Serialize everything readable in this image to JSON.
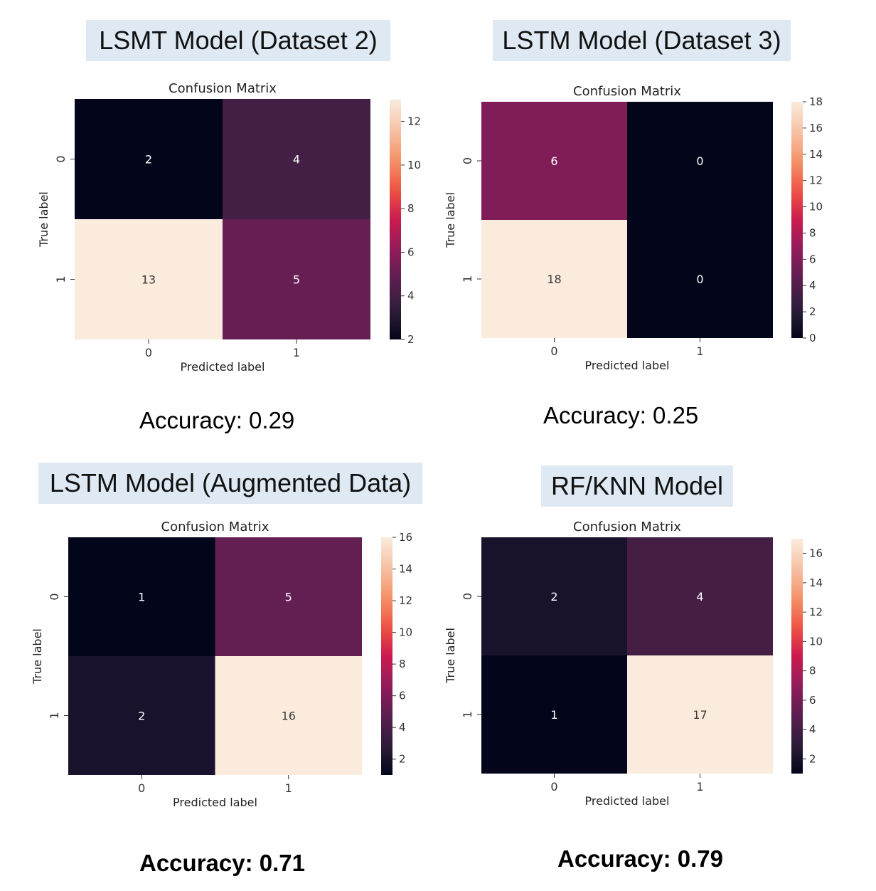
{
  "colors": {
    "banner_bg": "#dee9f3",
    "colormap": "rocket",
    "cmap_stops": [
      "#03051a",
      "#2e1e3b",
      "#5c1e51",
      "#921c5b",
      "#cb1b4f",
      "#ef5542",
      "#f4936a",
      "#f6c3a6",
      "#faebdd"
    ]
  },
  "chart_data": [
    {
      "type": "heatmap",
      "heading": "LSMT Model (Dataset 2)",
      "title": "Confusion Matrix",
      "xlabel": "Predicted label",
      "ylabel": "True label",
      "x_ticks": [
        "0",
        "1"
      ],
      "y_ticks": [
        "0",
        "1"
      ],
      "values": [
        [
          2,
          4
        ],
        [
          13,
          5
        ]
      ],
      "colorbar": {
        "min": 2,
        "max": 13,
        "ticks": [
          "2",
          "4",
          "6",
          "8",
          "10",
          "12"
        ]
      },
      "accuracy": "Accuracy: 0.29"
    },
    {
      "type": "heatmap",
      "heading": "LSTM Model (Dataset 3)",
      "title": "Confusion Matrix",
      "xlabel": "Predicted label",
      "ylabel": "True label",
      "x_ticks": [
        "0",
        "1"
      ],
      "y_ticks": [
        "0",
        "1"
      ],
      "values": [
        [
          6,
          0
        ],
        [
          18,
          0
        ]
      ],
      "colorbar": {
        "min": 0,
        "max": 18,
        "ticks": [
          "0",
          "2",
          "4",
          "6",
          "8",
          "10",
          "12",
          "14",
          "16",
          "18"
        ]
      },
      "accuracy": "Accuracy: 0.25"
    },
    {
      "type": "heatmap",
      "heading": "LSTM Model (Augmented Data)",
      "title": "Confusion Matrix",
      "xlabel": "Predicted label",
      "ylabel": "True label",
      "x_ticks": [
        "0",
        "1"
      ],
      "y_ticks": [
        "0",
        "1"
      ],
      "values": [
        [
          1,
          5
        ],
        [
          2,
          16
        ]
      ],
      "colorbar": {
        "min": 1,
        "max": 16,
        "ticks": [
          "2",
          "4",
          "6",
          "8",
          "10",
          "12",
          "14",
          "16"
        ]
      },
      "accuracy": "Accuracy: 0.71"
    },
    {
      "type": "heatmap",
      "heading": "RF/KNN Model",
      "title": "Confusion Matrix",
      "xlabel": "Predicted label",
      "ylabel": "True label",
      "x_ticks": [
        "0",
        "1"
      ],
      "y_ticks": [
        "0",
        "1"
      ],
      "values": [
        [
          2,
          4
        ],
        [
          1,
          17
        ]
      ],
      "colorbar": {
        "min": 1,
        "max": 17,
        "ticks": [
          "2",
          "4",
          "6",
          "8",
          "10",
          "12",
          "14",
          "16"
        ]
      },
      "accuracy": "Accuracy: 0.79"
    }
  ]
}
